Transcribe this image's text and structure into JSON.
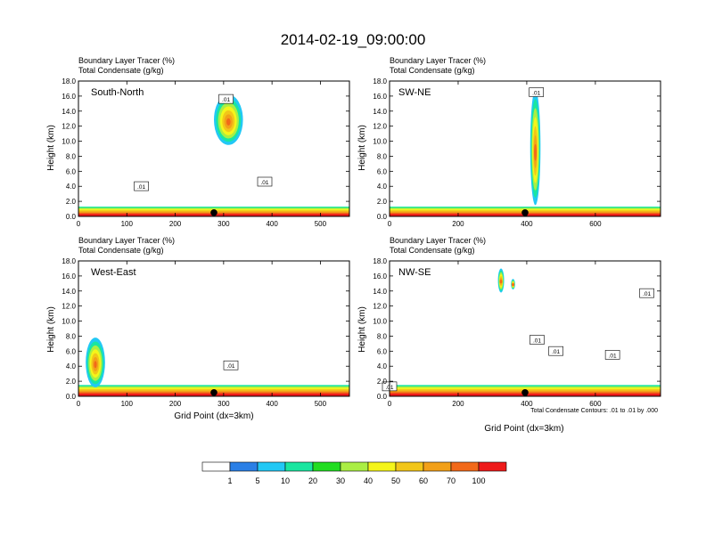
{
  "title": "2014-02-19_09:00:00",
  "fields": {
    "line1": "Boundary Layer Tracer   (%)",
    "line2": "Total Condensate   (g/kg)"
  },
  "colorbar": {
    "colors": [
      "#ffffff",
      "#2a7fe6",
      "#22c8f5",
      "#1ae6a0",
      "#22dd22",
      "#aaee44",
      "#f5f51a",
      "#f2c619",
      "#f2a019",
      "#f26919",
      "#ee1a1a"
    ],
    "labels": [
      "1",
      "5",
      "10",
      "20",
      "30",
      "40",
      "50",
      "60",
      "70",
      "100"
    ]
  },
  "chart_data": [
    {
      "type": "heatmap",
      "panel": "South-North",
      "header": [
        "Boundary Layer Tracer   (%)",
        "Total Condensate   (g/kg)"
      ],
      "ylabel": "Height (km)",
      "xlabel": "",
      "xlim": [
        0,
        560
      ],
      "ylim": [
        0,
        18
      ],
      "xticks": [
        0,
        100,
        200,
        300,
        400,
        500
      ],
      "yticks": [
        "0.0",
        "2.0",
        "4.0",
        "6.0",
        "8.0",
        "10.0",
        "12.0",
        "14.0",
        "16.0",
        "18.0"
      ],
      "boundary_layer_top_km": 1.3,
      "marker_x": 280,
      "plumes": [
        {
          "x_center": 310,
          "x_width": 60,
          "top_km": 16.2,
          "bottom_km": 9.5
        }
      ],
      "contour_labels": [
        {
          "text": ".01",
          "x": 130,
          "y_km": 3.9
        },
        {
          "text": ".01",
          "x": 305,
          "y_km": 15.5
        },
        {
          "text": ".01",
          "x": 385,
          "y_km": 4.5
        }
      ]
    },
    {
      "type": "heatmap",
      "panel": "SW-NE",
      "header": [
        "Boundary Layer Tracer   (%)",
        "Total Condensate   (g/kg)"
      ],
      "ylabel": "Height (km)",
      "xlabel": "",
      "xlim": [
        0,
        790
      ],
      "ylim": [
        0,
        18
      ],
      "xticks": [
        0,
        200,
        400,
        600
      ],
      "yticks": [
        "0.0",
        "2.0",
        "4.0",
        "6.0",
        "8.0",
        "10.0",
        "12.0",
        "14.0",
        "16.0",
        "18.0"
      ],
      "boundary_layer_top_km": 1.3,
      "marker_x": 395,
      "plumes": [
        {
          "x_center": 425,
          "x_width": 30,
          "top_km": 16.8,
          "bottom_km": 1.5
        }
      ],
      "contour_labels": [
        {
          "text": ".01",
          "x": 428,
          "y_km": 16.4
        }
      ]
    },
    {
      "type": "heatmap",
      "panel": "West-East",
      "header": [
        "Boundary Layer Tracer   (%)",
        "Total Condensate   (g/kg)"
      ],
      "ylabel": "Height (km)",
      "xlabel": "Grid Point (dx=3km)",
      "xlim": [
        0,
        560
      ],
      "ylim": [
        0,
        18
      ],
      "xticks": [
        0,
        100,
        200,
        300,
        400,
        500
      ],
      "yticks": [
        "0.0",
        "2.0",
        "4.0",
        "6.0",
        "8.0",
        "10.0",
        "12.0",
        "14.0",
        "16.0",
        "18.0"
      ],
      "boundary_layer_top_km": 1.5,
      "marker_x": 280,
      "plumes": [
        {
          "x_center": 35,
          "x_width": 40,
          "top_km": 7.8,
          "bottom_km": 1.2
        }
      ],
      "contour_labels": [
        {
          "text": ".01",
          "x": 315,
          "y_km": 4.0
        }
      ]
    },
    {
      "type": "heatmap",
      "panel": "NW-SE",
      "header": [
        "Boundary Layer Tracer   (%)",
        "Total Condensate   (g/kg)"
      ],
      "ylabel": "Height (km)",
      "xlabel": "Grid Point (dx=3km)",
      "xlim": [
        0,
        790
      ],
      "ylim": [
        0,
        18
      ],
      "xticks": [
        0,
        200,
        400,
        600
      ],
      "yticks": [
        "0.0",
        "2.0",
        "4.0",
        "6.0",
        "8.0",
        "10.0",
        "12.0",
        "14.0",
        "16.0",
        "18.0"
      ],
      "boundary_layer_top_km": 1.5,
      "marker_x": 395,
      "plumes": [
        {
          "x_center": 325,
          "x_width": 18,
          "top_km": 17.0,
          "bottom_km": 13.8
        },
        {
          "x_center": 360,
          "x_width": 12,
          "top_km": 15.6,
          "bottom_km": 14.2
        }
      ],
      "contour_labels": [
        {
          "text": ".01",
          "x": 750,
          "y_km": 13.6
        },
        {
          "text": ".01",
          "x": 430,
          "y_km": 7.4
        },
        {
          "text": ".01",
          "x": 485,
          "y_km": 5.9
        },
        {
          "text": ".01",
          "x": 650,
          "y_km": 5.4
        },
        {
          "text": ".01",
          "x": 0,
          "y_km": 1.2
        }
      ],
      "footnote": "Total Condensate Contours: .01 to .01 by .000"
    }
  ]
}
